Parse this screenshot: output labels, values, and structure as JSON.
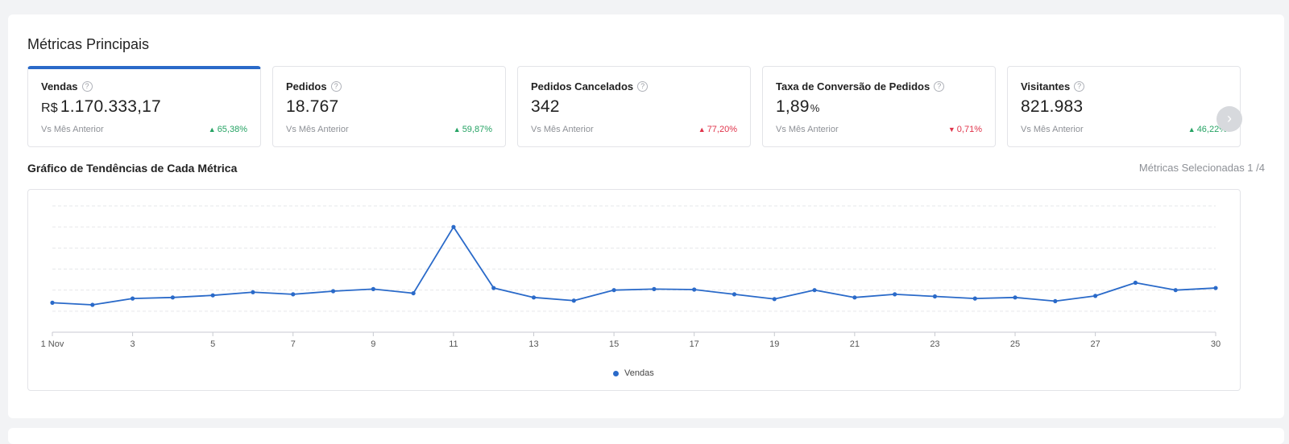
{
  "panel": {
    "title": "Métricas Principais"
  },
  "cards": [
    {
      "label": "Vendas",
      "prefix": "R$",
      "value": "1.170.333,17",
      "suffix": "",
      "compare": "Vs Mês Anterior",
      "delta": "65,38%",
      "direction": "up",
      "tone": "green",
      "active": true
    },
    {
      "label": "Pedidos",
      "prefix": "",
      "value": "18.767",
      "suffix": "",
      "compare": "Vs Mês Anterior",
      "delta": "59,87%",
      "direction": "up",
      "tone": "green",
      "active": false
    },
    {
      "label": "Pedidos Cancelados",
      "prefix": "",
      "value": "342",
      "suffix": "",
      "compare": "Vs Mês Anterior",
      "delta": "77,20%",
      "direction": "up",
      "tone": "red",
      "active": false
    },
    {
      "label": "Taxa de Conversão de Pedidos",
      "prefix": "",
      "value": "1,89",
      "suffix": "%",
      "compare": "Vs Mês Anterior",
      "delta": "0,71%",
      "direction": "down",
      "tone": "red",
      "active": false
    },
    {
      "label": "Visitantes",
      "prefix": "",
      "value": "821.983",
      "suffix": "",
      "compare": "Vs Mês Anterior",
      "delta": "46,22%",
      "direction": "up",
      "tone": "green",
      "active": false
    }
  ],
  "trend": {
    "title": "Gráfico de Tendências de Cada Métrica",
    "selected_info": "Métricas Selecionadas 1 /4"
  },
  "colors": {
    "accent": "#2a6ac9",
    "up_green": "#26a364",
    "red": "#e0344b"
  },
  "icons": {
    "help": "question-circle-icon",
    "next": "chevron-right-icon",
    "up": "triangle-up-icon",
    "down": "triangle-down-icon"
  },
  "chart_data": {
    "type": "line",
    "x": [
      1,
      2,
      3,
      4,
      5,
      6,
      7,
      8,
      9,
      10,
      11,
      12,
      13,
      14,
      15,
      16,
      17,
      18,
      19,
      20,
      21,
      22,
      23,
      24,
      25,
      26,
      27,
      28,
      29,
      30
    ],
    "x_tick_labels": [
      {
        "x": 1,
        "label": "1 Nov"
      },
      {
        "x": 3,
        "label": "3"
      },
      {
        "x": 5,
        "label": "5"
      },
      {
        "x": 7,
        "label": "7"
      },
      {
        "x": 9,
        "label": "9"
      },
      {
        "x": 11,
        "label": "11"
      },
      {
        "x": 13,
        "label": "13"
      },
      {
        "x": 15,
        "label": "15"
      },
      {
        "x": 17,
        "label": "17"
      },
      {
        "x": 19,
        "label": "19"
      },
      {
        "x": 21,
        "label": "21"
      },
      {
        "x": 23,
        "label": "23"
      },
      {
        "x": 25,
        "label": "25"
      },
      {
        "x": 27,
        "label": "27"
      },
      {
        "x": 30,
        "label": "30"
      }
    ],
    "series": [
      {
        "name": "Vendas",
        "values": [
          28000,
          26000,
          32000,
          33000,
          35000,
          38000,
          36000,
          39000,
          41000,
          37000,
          100000,
          42000,
          33000,
          30000,
          40000,
          41000,
          40500,
          36000,
          31500,
          40000,
          33000,
          36000,
          34000,
          32000,
          33000,
          29500,
          34500,
          47000,
          40000,
          42000
        ]
      }
    ],
    "ylim": [
      0,
      120000
    ],
    "grid": true,
    "legend": "bottom-center"
  }
}
